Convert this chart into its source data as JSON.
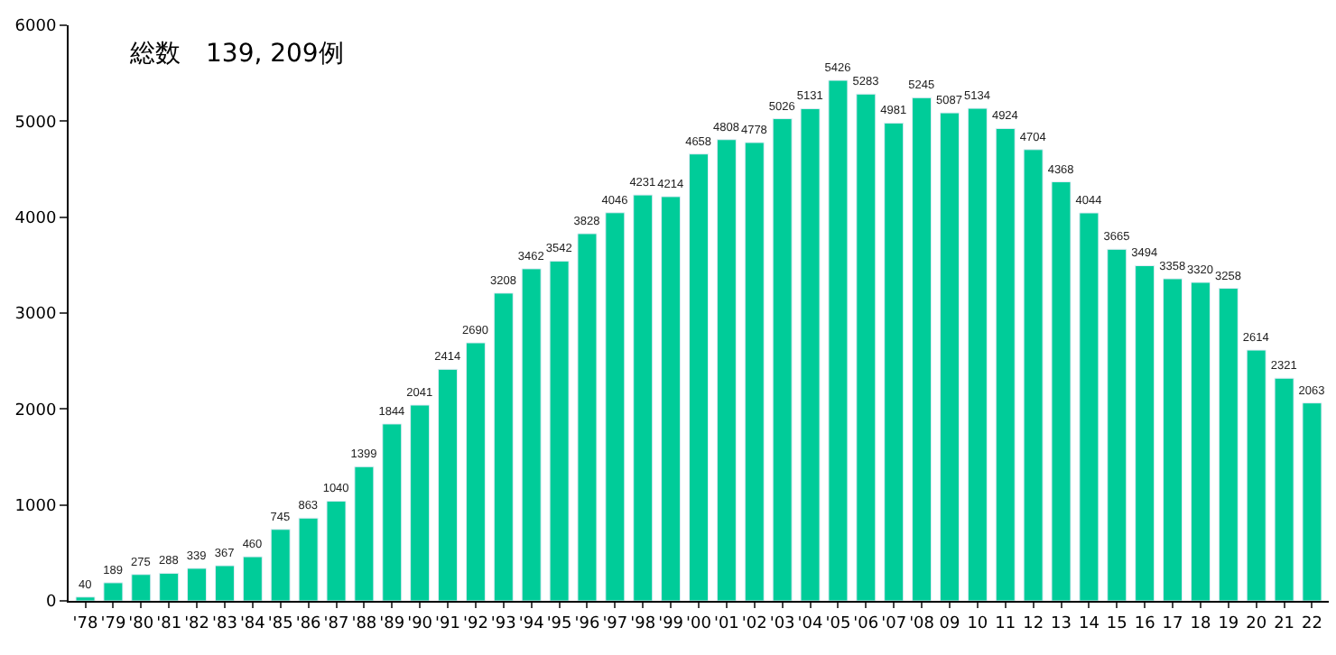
{
  "chart_data": {
    "type": "bar",
    "annotations": [
      "総数　139, 209例"
    ],
    "categories": [
      "'78",
      "'79",
      "'80",
      "'81",
      "'82",
      "'83",
      "'84",
      "'85",
      "'86",
      "'87",
      "'88",
      "'89",
      "'90",
      "'91",
      "'92",
      "'93",
      "'94",
      "'95",
      "'96",
      "'97",
      "'98",
      "'99",
      "'00",
      "'01",
      "'02",
      "'03",
      "'04",
      "'05",
      "'06",
      "'07",
      "'08",
      "09",
      "10",
      "11",
      "12",
      "13",
      "14",
      "15",
      "16",
      "17",
      "18",
      "19",
      "20",
      "21",
      "22"
    ],
    "values": [
      40,
      189,
      275,
      288,
      339,
      367,
      460,
      745,
      863,
      1040,
      1399,
      1844,
      2041,
      2414,
      2690,
      3208,
      3462,
      3542,
      3828,
      4046,
      4231,
      4214,
      4658,
      4808,
      4778,
      5026,
      5131,
      5426,
      5283,
      4981,
      5245,
      5087,
      5134,
      4924,
      4704,
      4368,
      4044,
      3665,
      3494,
      3358,
      3320,
      3258,
      2614,
      2321,
      2063
    ],
    "color": "#00cc99",
    "ylim": [
      0,
      6000
    ],
    "yticks": [
      0,
      1000,
      2000,
      3000,
      4000,
      5000,
      6000
    ],
    "data_labels": true
  }
}
